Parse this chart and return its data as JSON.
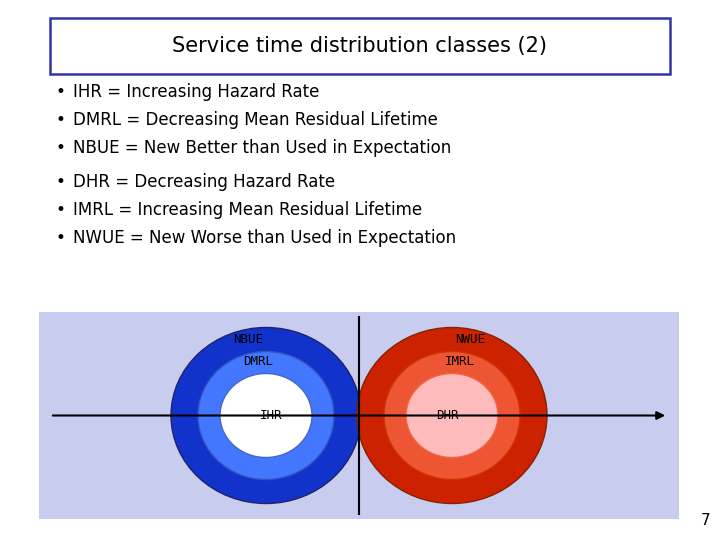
{
  "title": "Service time distribution classes (2)",
  "title_fontsize": 15,
  "background_color": "#ffffff",
  "bullet_group1": [
    "IHR = Increasing Hazard Rate",
    "DMRL = Decreasing Mean Residual Lifetime",
    "NBUE = New Better than Used in Expectation"
  ],
  "bullet_group2": [
    "DHR = Decreasing Hazard Rate",
    "IMRL = Increasing Mean Residual Lifetime",
    "NWUE = New Worse than Used in Expectation"
  ],
  "diagram_bg": "#c8ccee",
  "blue_outer_color": "#1133cc",
  "blue_mid_color": "#4477ff",
  "blue_inner_color": "#ffffff",
  "red_outer_color": "#cc2200",
  "red_mid_color": "#ee5533",
  "red_inner_color": "#ffbbbb",
  "page_number": "7",
  "bullet_fontsize": 12,
  "label_fontsize": 9
}
